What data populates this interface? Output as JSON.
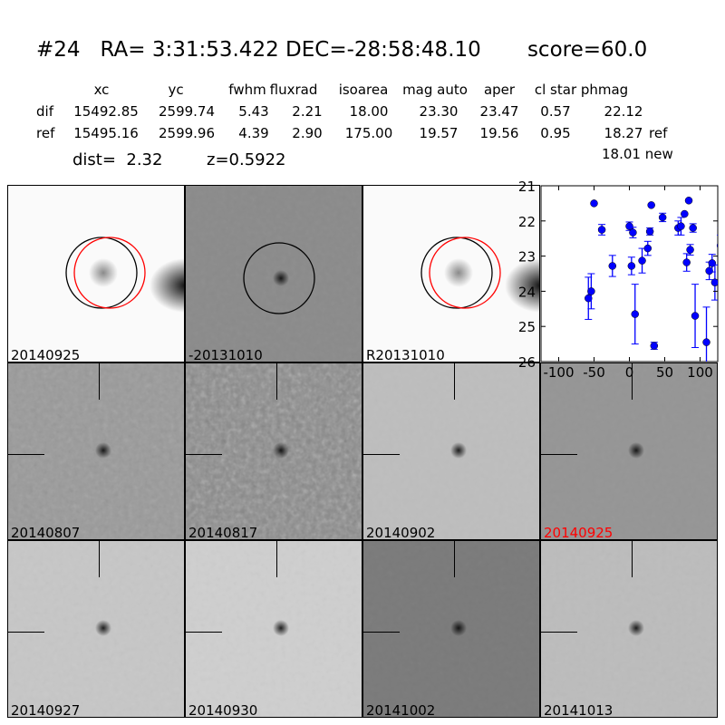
{
  "header": {
    "title": "#24   RA= 3:31:53.422 DEC=-28:58:48.10       score=60.0"
  },
  "table": {
    "columns": [
      "xc",
      "yc",
      "fwhm",
      "fluxrad",
      "isoarea",
      "mag auto",
      "aper",
      "cl star",
      "phmag"
    ],
    "rows": [
      {
        "label": "dif",
        "values": [
          "15492.85",
          "2599.74",
          "5.43",
          "2.21",
          "18.00",
          "23.30",
          "23.47",
          "0.57",
          "22.12"
        ],
        "note": ""
      },
      {
        "label": "ref",
        "values": [
          "15495.16",
          "2599.96",
          "4.39",
          "2.90",
          "175.00",
          "19.57",
          "19.56",
          "0.95",
          "18.27"
        ],
        "note": "ref"
      }
    ],
    "extra_phmag": "18.01",
    "extra_note": "new",
    "dist": "dist=  2.32",
    "z": "z=0.5922"
  },
  "stamps": [
    {
      "label": "20140925",
      "tone": "#fafafa",
      "noise": 0.05,
      "label_color": "#000000",
      "circles": [
        "black",
        "red"
      ],
      "cross": false
    },
    {
      "label": "-20131010",
      "tone": "#8a8a8a",
      "noise": 0.35,
      "label_color": "#000000",
      "circles": [
        "black"
      ],
      "cross": false
    },
    {
      "label": "R20131010",
      "tone": "#fafafa",
      "noise": 0.05,
      "label_color": "#000000",
      "circles": [
        "black",
        "red"
      ],
      "cross": false
    },
    {
      "label": "20140807",
      "tone": "#9a9a9a",
      "noise": 0.6,
      "label_color": "#000000",
      "cross": true
    },
    {
      "label": "20140817",
      "tone": "#8a8a8a",
      "noise": 0.9,
      "label_color": "#000000",
      "cross": true
    },
    {
      "label": "20140902",
      "tone": "#bdbdbd",
      "noise": 0.3,
      "label_color": "#000000",
      "cross": true
    },
    {
      "label": "20140925",
      "tone": "#959595",
      "noise": 0.3,
      "label_color": "#ff0000",
      "cross": true
    },
    {
      "label": "20140927",
      "tone": "#c6c6c6",
      "noise": 0.4,
      "label_color": "#000000",
      "cross": true
    },
    {
      "label": "20140930",
      "tone": "#cfcfcf",
      "noise": 0.4,
      "label_color": "#000000",
      "cross": true
    },
    {
      "label": "20141002",
      "tone": "#7a7a7a",
      "noise": 0.3,
      "label_color": "#000000",
      "cross": true
    },
    {
      "label": "20141013",
      "tone": "#bcbcbc",
      "noise": 0.35,
      "label_color": "#000000",
      "cross": true
    }
  ],
  "chart_data": {
    "type": "scatter",
    "xlim": [
      -125,
      125
    ],
    "ylim": [
      26,
      21
    ],
    "y_inverted": true,
    "xticks": [
      "-100",
      "-50",
      "0",
      "50",
      "100"
    ],
    "xtick_values": [
      -100,
      -50,
      0,
      50,
      100
    ],
    "yticks": [
      "21",
      "22",
      "23",
      "24",
      "25",
      "26"
    ],
    "ytick_values": [
      21,
      22,
      23,
      24,
      25,
      26
    ],
    "color": "#0000ff",
    "points": [
      {
        "x": -58,
        "y": 24.2,
        "err": 0.6
      },
      {
        "x": -54,
        "y": 24.0,
        "err": 0.5
      },
      {
        "x": -50,
        "y": 21.5,
        "err": 0
      },
      {
        "x": -39,
        "y": 22.25,
        "err": 0.15
      },
      {
        "x": -24,
        "y": 23.28,
        "err": 0.3
      },
      {
        "x": 0,
        "y": 22.15,
        "err": 0.12
      },
      {
        "x": 3,
        "y": 23.28,
        "err": 0.25
      },
      {
        "x": 5,
        "y": 22.33,
        "err": 0.15
      },
      {
        "x": 8,
        "y": 24.65,
        "err": 0.85
      },
      {
        "x": 18,
        "y": 23.13,
        "err": 0.35
      },
      {
        "x": 26,
        "y": 22.78,
        "err": 0.2
      },
      {
        "x": 29,
        "y": 22.3,
        "err": 0.1
      },
      {
        "x": 31,
        "y": 21.55,
        "err": 0
      },
      {
        "x": 35,
        "y": 25.55,
        "err": 0.1
      },
      {
        "x": 47,
        "y": 21.9,
        "err": 0.12
      },
      {
        "x": 69,
        "y": 22.2,
        "err": 0.2
      },
      {
        "x": 73,
        "y": 22.15,
        "err": 0.25
      },
      {
        "x": 78,
        "y": 21.8,
        "err": 0
      },
      {
        "x": 81,
        "y": 23.18,
        "err": 0.25
      },
      {
        "x": 84,
        "y": 21.42,
        "err": 0
      },
      {
        "x": 86,
        "y": 22.82,
        "err": 0.15
      },
      {
        "x": 90,
        "y": 22.2,
        "err": 0.12
      },
      {
        "x": 93,
        "y": 24.7,
        "err": 0.9
      },
      {
        "x": 109,
        "y": 25.45,
        "err": 1.0
      },
      {
        "x": 113,
        "y": 23.42,
        "err": 0.25
      },
      {
        "x": 117,
        "y": 23.2,
        "err": 0.25
      },
      {
        "x": 121,
        "y": 23.75,
        "err": 0.5
      },
      {
        "x": 129,
        "y": 22.7,
        "err": 0.3
      },
      {
        "x": 130,
        "y": 22.1,
        "err": 0.1
      }
    ]
  }
}
